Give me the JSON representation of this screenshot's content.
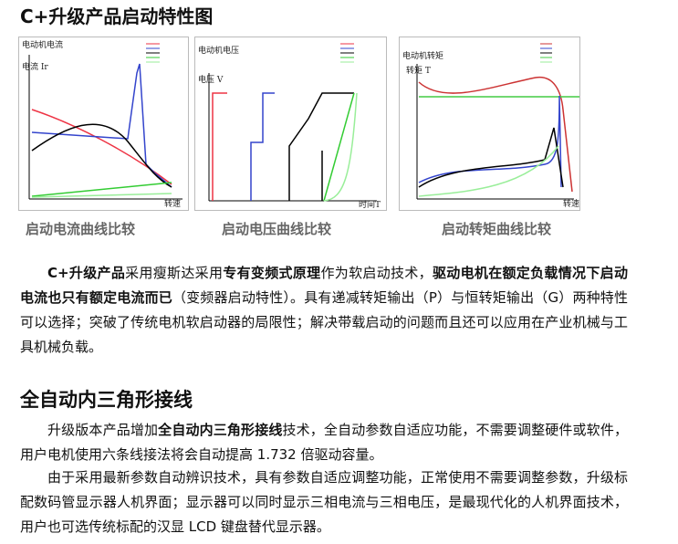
{
  "title": "C+升级产品启动特性图",
  "figures": [
    {
      "chart_title": "电动机电流",
      "y_label": "电流 Ir",
      "x_label": "转速",
      "caption": "启动电流曲线比较"
    },
    {
      "chart_title": "电动机电压",
      "y_label": "电压 V",
      "x_label": "时间T",
      "caption": "启动电压曲线比较"
    },
    {
      "chart_title": "电动机转矩",
      "y_label": "转矩 T",
      "x_label": "转速",
      "caption": "启动转矩曲线比较"
    }
  ],
  "paragraph1": [
    {
      "text": "C+升级产品",
      "bold": true
    },
    {
      "text": "采用瘦斯达采用",
      "bold": false
    },
    {
      "text": "专有变频式原理",
      "bold": true
    },
    {
      "text": "作为软启动技术，",
      "bold": false
    },
    {
      "text": "驱动电机在额定负载情况下启动电流也只有额定电流而已",
      "bold": true
    },
    {
      "text": "（变频器启动特性）。具有递减转矩输出（P）与恒转矩输出（G）两种特性可以选择；突破了传统电机软启动器的局限性；解决带载启动的问题而且还可以应用在产业机械与工具机械负载。",
      "bold": false
    }
  ],
  "heading2": "全自动内三角形接线",
  "paragraph2": [
    {
      "text": "升级版本产品增加",
      "bold": false
    },
    {
      "text": "全自动内三角形接线",
      "bold": true
    },
    {
      "text": "技术，全自动参数自适应功能，不需要调整硬件或软件，用户电机使用六条线接法将会自动提高 1.732 倍驱动容量。",
      "bold": false
    }
  ],
  "paragraph3": "由于采用最新参数自动辨识技术，具有参数自适应调整功能，正常使用不需要调整参数，升级标配数码管显示器人机界面；显示器可以同时显示三相电流与三相电压，是最现代化的人机界面技术，用户也可选传统标配的汉显 LCD 键盘替代显示器。"
}
